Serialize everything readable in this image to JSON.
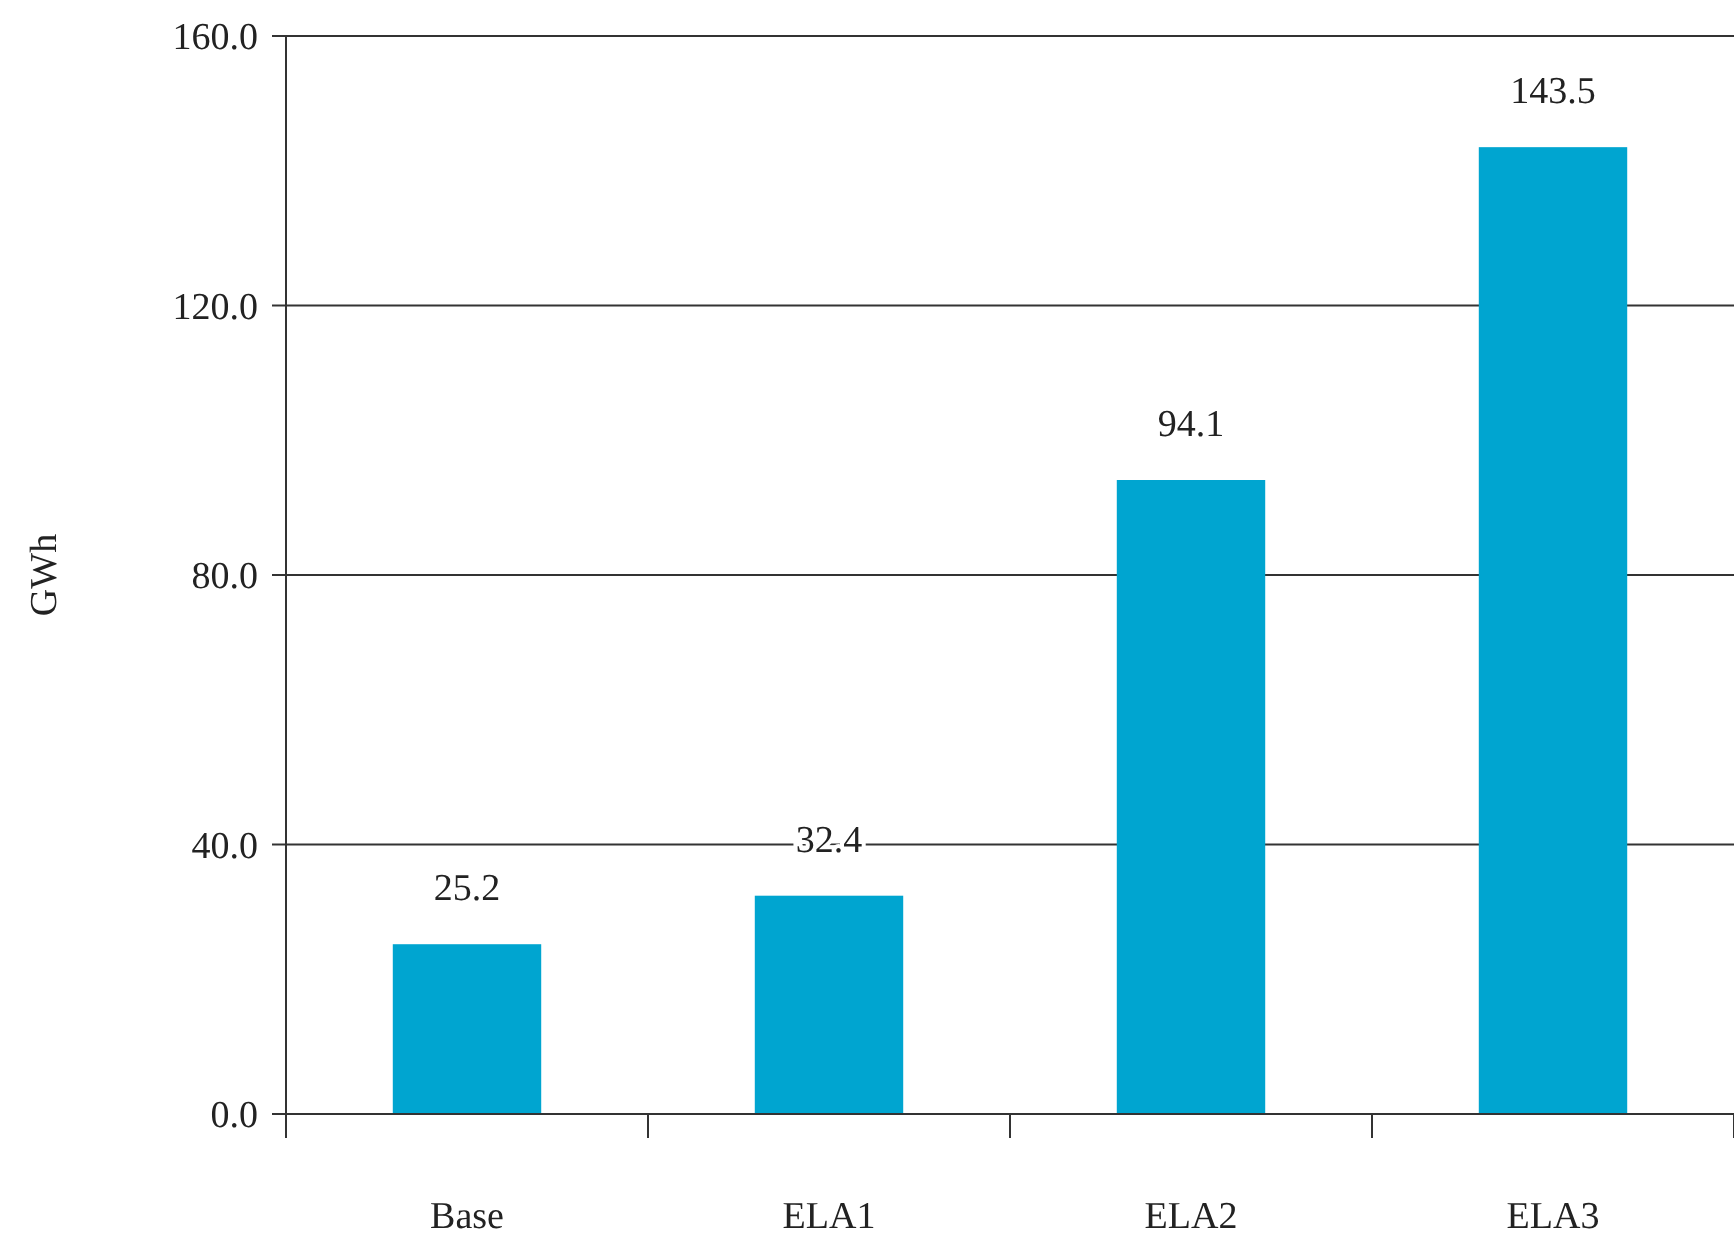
{
  "chart_data": {
    "type": "bar",
    "ylabel": "GWh",
    "categories": [
      "Base",
      "ELA1",
      "ELA2",
      "ELA3"
    ],
    "values": [
      25.2,
      32.4,
      94.1,
      143.5
    ],
    "color": "#00a5d0",
    "ylim": [
      0,
      160
    ],
    "yticks": [
      {
        "value": 0,
        "label": "0.0"
      },
      {
        "value": 40,
        "label": "40.0"
      },
      {
        "value": 80,
        "label": "80.0"
      },
      {
        "value": 120,
        "label": "120.0"
      },
      {
        "value": 160,
        "label": "160.0"
      }
    ],
    "grid": "y",
    "data_labels": true
  }
}
